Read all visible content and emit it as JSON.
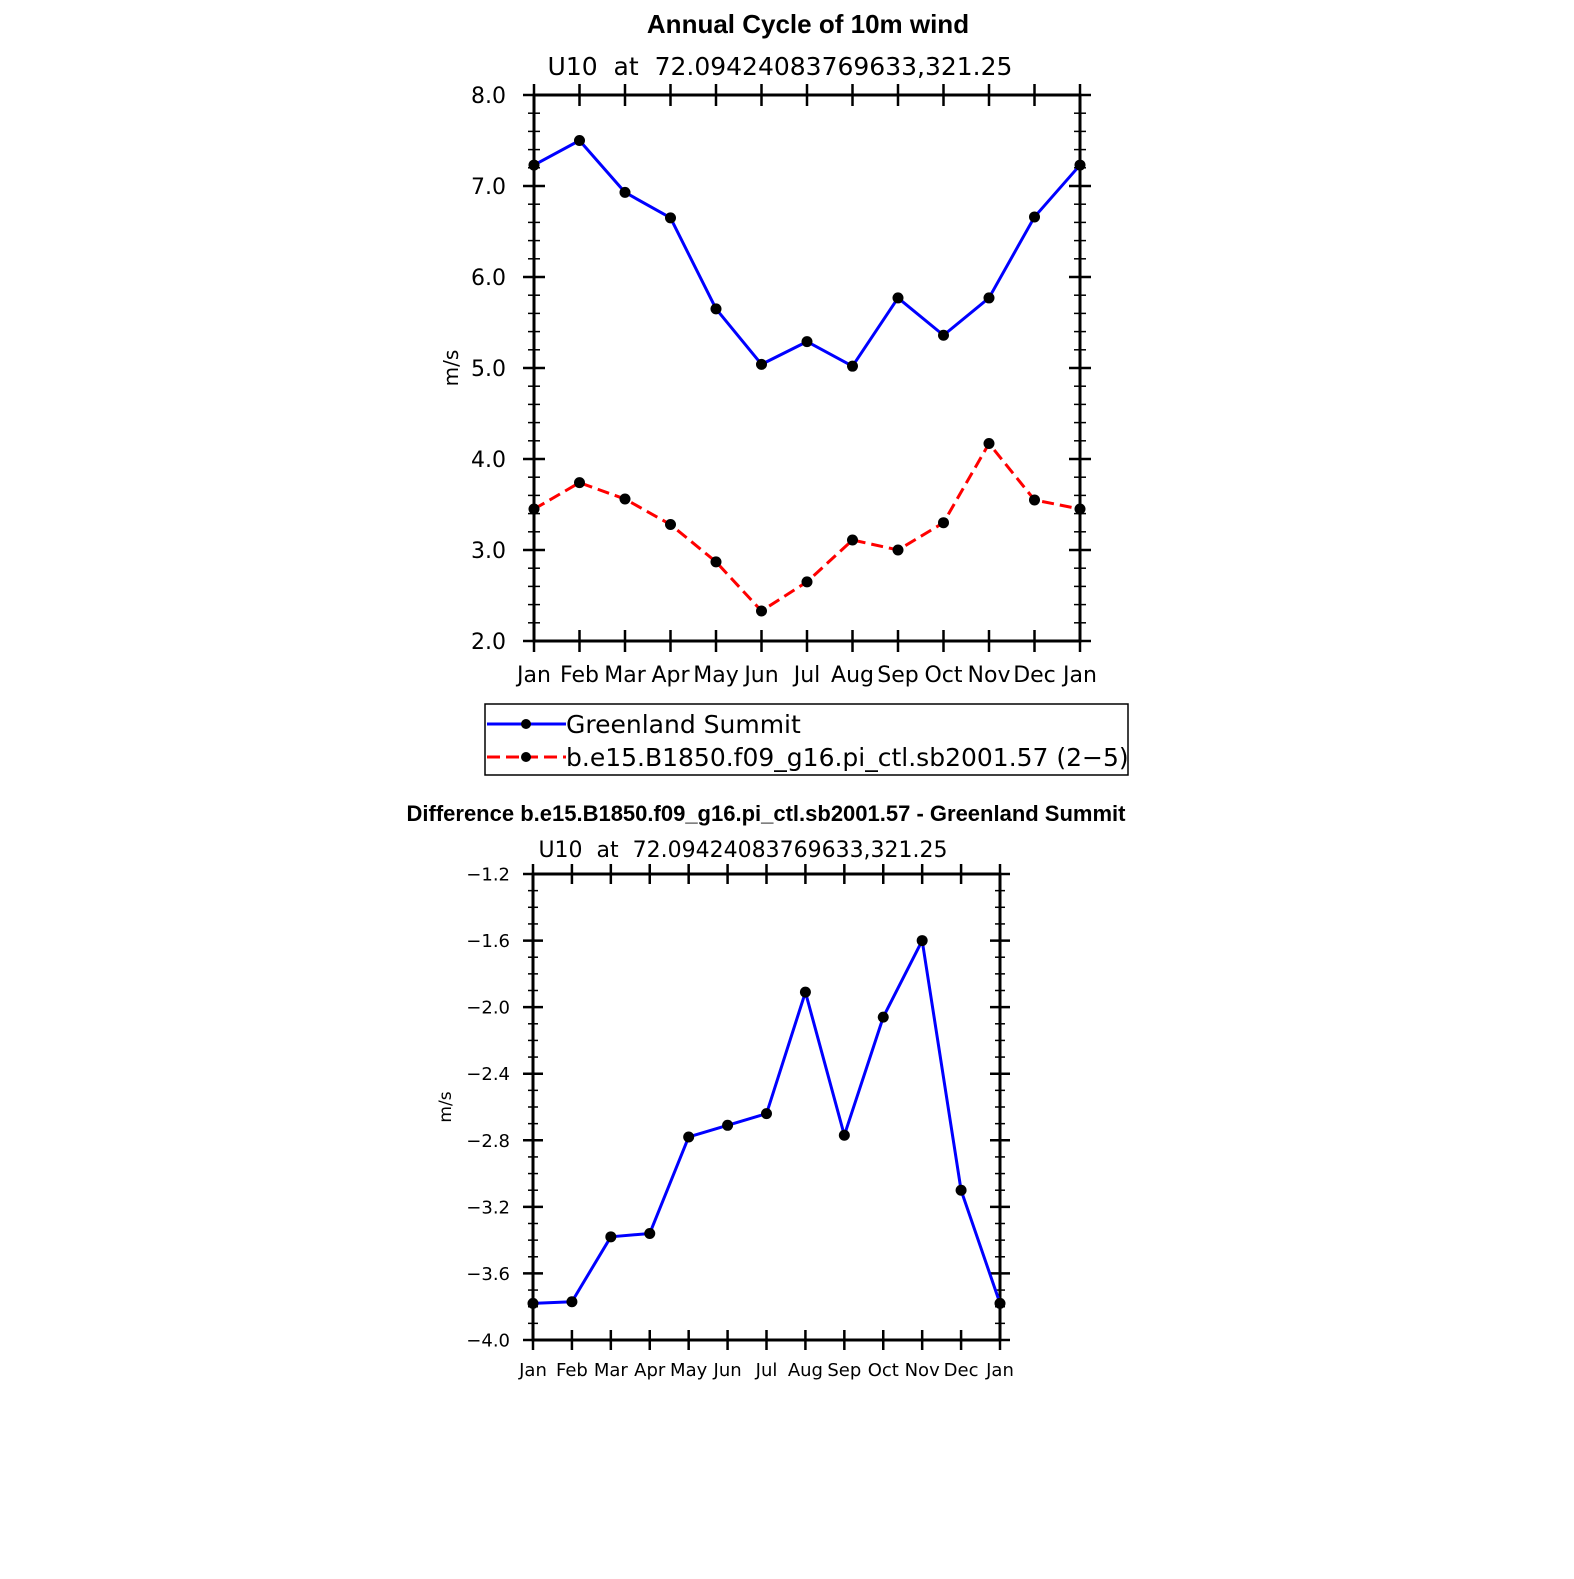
{
  "chart_data": [
    {
      "type": "line",
      "title": "Annual Cycle of 10m wind",
      "subtitle": "U10  at  72.09424083769633,321.25",
      "xlabel": "",
      "ylabel": "m/s",
      "categories": [
        "Jan",
        "Feb",
        "Mar",
        "Apr",
        "May",
        "Jun",
        "Jul",
        "Aug",
        "Sep",
        "Oct",
        "Nov",
        "Dec",
        "Jan"
      ],
      "ylim": [
        2.0,
        8.0
      ],
      "yticks": [
        2.0,
        3.0,
        4.0,
        5.0,
        6.0,
        7.0,
        8.0
      ],
      "ytick_labels": [
        "2.0",
        "3.0",
        "4.0",
        "5.0",
        "6.0",
        "7.0",
        "8.0"
      ],
      "grid": false,
      "legend_position": "bottom",
      "series": [
        {
          "name": "Greenland Summit",
          "color": "#0000ff",
          "dash": "solid",
          "values": [
            7.23,
            7.5,
            6.93,
            6.65,
            5.65,
            5.04,
            5.29,
            5.02,
            5.77,
            5.36,
            5.77,
            6.66,
            7.23
          ]
        },
        {
          "name": "b.e15.B1850.f09_g16.pi_ctl.sb2001.57 (2−5)",
          "color": "#ff0000",
          "dash": "dashed",
          "values": [
            3.45,
            3.74,
            3.56,
            3.28,
            2.87,
            2.33,
            2.65,
            3.11,
            3.0,
            3.3,
            4.17,
            3.55,
            3.45
          ]
        }
      ]
    },
    {
      "type": "line",
      "title": "Difference b.e15.B1850.f09_g16.pi_ctl.sb2001.57 - Greenland Summit",
      "subtitle": "U10  at  72.09424083769633,321.25",
      "xlabel": "",
      "ylabel": "m/s",
      "categories": [
        "Jan",
        "Feb",
        "Mar",
        "Apr",
        "May",
        "Jun",
        "Jul",
        "Aug",
        "Sep",
        "Oct",
        "Nov",
        "Dec",
        "Jan"
      ],
      "ylim": [
        -4.0,
        -1.2
      ],
      "yticks": [
        -4.0,
        -3.6,
        -3.2,
        -2.8,
        -2.4,
        -2.0,
        -1.6,
        -1.2
      ],
      "ytick_labels": [
        "−4.0",
        "−3.6",
        "−3.2",
        "−2.8",
        "−2.4",
        "−2.0",
        "−1.6",
        "−1.2"
      ],
      "grid": false,
      "series": [
        {
          "name": "Difference",
          "color": "#0000ff",
          "dash": "solid",
          "values": [
            -3.78,
            -3.77,
            -3.38,
            -3.36,
            -2.78,
            -2.71,
            -2.64,
            -1.91,
            -2.77,
            -2.06,
            -1.6,
            -3.1,
            -3.78
          ]
        }
      ]
    }
  ]
}
